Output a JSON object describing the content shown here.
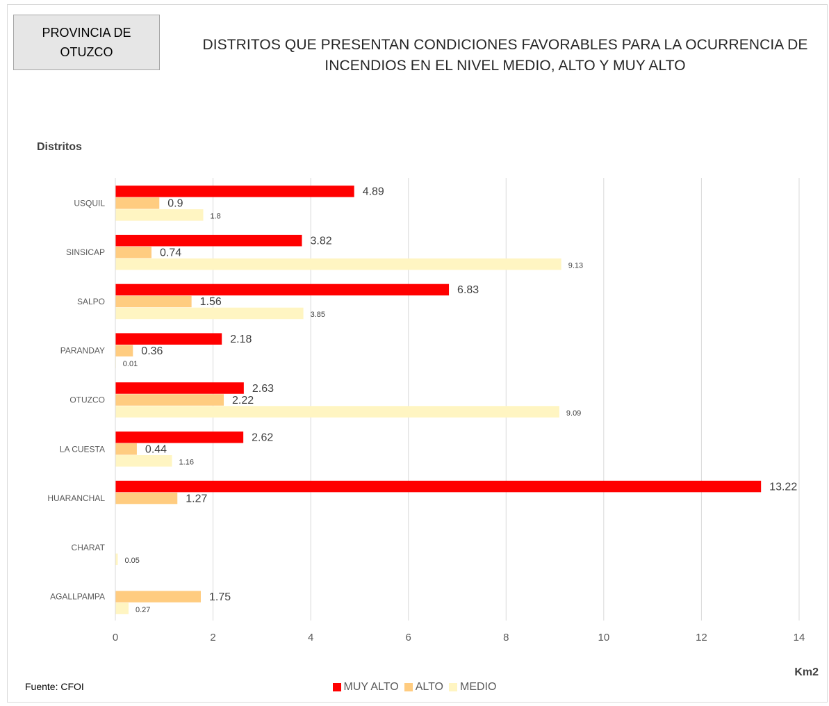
{
  "header": {
    "province_line1": "PROVINCIA DE",
    "province_line2": "OTUZCO",
    "title_line1": "DISTRITOS QUE PRESENTAN CONDICIONES FAVORABLES PARA LA OCURRENCIA DE",
    "title_line2": "INCENDIOS EN EL NIVEL MEDIO, ALTO  Y  MUY ALTO"
  },
  "footer": {
    "source": "Fuente: CFOI"
  },
  "colors": {
    "muy_alto": "#ff0000",
    "alto": "#ffcc80",
    "medio": "#fff5c2",
    "grid": "#d9d9d9"
  },
  "chart_data": {
    "type": "bar",
    "orientation": "horizontal",
    "title": "DISTRITOS QUE PRESENTAN CONDICIONES FAVORABLES PARA LA OCURRENCIA DE INCENDIOS EN EL NIVEL MEDIO, ALTO  Y  MUY ALTO",
    "ylabel": "Distritos",
    "xlabel": "Km2",
    "xlim": [
      0,
      14
    ],
    "xticks": [
      0,
      2,
      4,
      6,
      8,
      10,
      12,
      14
    ],
    "grid": true,
    "legend_position": "bottom",
    "categories": [
      "USQUIL",
      "SINSICAP",
      "SALPO",
      "PARANDAY",
      "OTUZCO",
      "LA CUESTA",
      "HUARANCHAL",
      "CHARAT",
      "AGALLPAMPA"
    ],
    "series": [
      {
        "name": "MUY ALTO",
        "values": [
          4.89,
          3.82,
          6.83,
          2.18,
          2.63,
          2.62,
          13.22,
          null,
          null
        ]
      },
      {
        "name": "ALTO",
        "values": [
          0.9,
          0.74,
          1.56,
          0.36,
          2.22,
          0.44,
          1.27,
          null,
          1.75
        ]
      },
      {
        "name": "MEDIO",
        "values": [
          1.8,
          9.13,
          3.85,
          0.01,
          9.09,
          1.16,
          null,
          0.05,
          0.27
        ]
      }
    ]
  }
}
